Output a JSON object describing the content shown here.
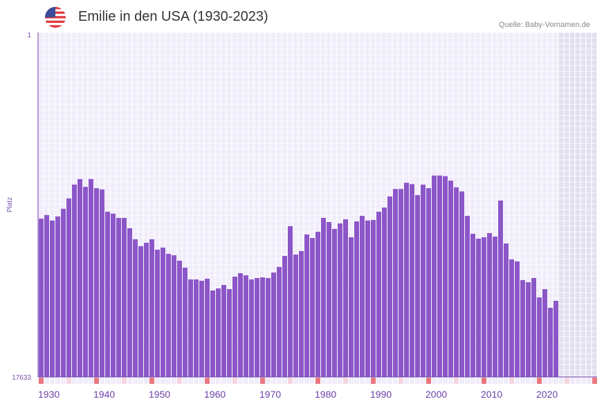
{
  "header": {
    "title": "Emilie in den USA (1930-2023)",
    "source": "Quelle: Baby-Vornamen.de",
    "flag_icon": "us-flag-icon"
  },
  "chart_data": {
    "type": "bar",
    "title": "Emilie in den USA (1930-2023)",
    "xlabel": "",
    "ylabel": "Platz",
    "y_scale": "log-reversed",
    "ylim": [
      1,
      17633
    ],
    "y_ticks": [
      "1",
      "17633"
    ],
    "x_range": [
      1930,
      2030
    ],
    "x_ticks": [
      "1930",
      "1940",
      "1950",
      "1960",
      "1970",
      "1980",
      "1990",
      "2000",
      "2010",
      "2020"
    ],
    "future_shaded_from": 2024,
    "grid": true,
    "colors": {
      "bar": "#8c56c8",
      "plot_bg": "#f0ecfa",
      "future_bg": "#e2dff0",
      "decade_marker": "#e87880",
      "half_decade_marker": "#f5d6de"
    },
    "years": [
      1930,
      1931,
      1932,
      1933,
      1934,
      1935,
      1936,
      1937,
      1938,
      1939,
      1940,
      1941,
      1942,
      1943,
      1944,
      1945,
      1946,
      1947,
      1948,
      1949,
      1950,
      1951,
      1952,
      1953,
      1954,
      1955,
      1956,
      1957,
      1958,
      1959,
      1960,
      1961,
      1962,
      1963,
      1964,
      1965,
      1966,
      1967,
      1968,
      1969,
      1970,
      1971,
      1972,
      1973,
      1974,
      1975,
      1976,
      1977,
      1978,
      1979,
      1980,
      1981,
      1982,
      1983,
      1984,
      1985,
      1986,
      1987,
      1988,
      1989,
      1990,
      1991,
      1992,
      1993,
      1994,
      1995,
      1996,
      1997,
      1998,
      1999,
      2000,
      2001,
      2002,
      2003,
      2004,
      2005,
      2006,
      2007,
      2008,
      2009,
      2010,
      2011,
      2012,
      2013,
      2014,
      2015,
      2016,
      2017,
      2018,
      2019,
      2020,
      2021,
      2022,
      2023
    ],
    "values": [
      197,
      178,
      208,
      185,
      149,
      111,
      75,
      64,
      80,
      64,
      83,
      86,
      162,
      171,
      193,
      193,
      259,
      354,
      431,
      391,
      354,
      476,
      449,
      535,
      557,
      651,
      793,
      1107,
      1107,
      1151,
      1085,
      1515,
      1429,
      1295,
      1457,
      1023,
      927,
      984,
      1107,
      1064,
      1043,
      1064,
      910,
      777,
      568,
      244,
      546,
      495,
      309,
      341,
      286,
      193,
      217,
      264,
      226,
      201,
      334,
      213,
      182,
      208,
      205,
      162,
      144,
      105,
      85,
      85,
      71,
      74,
      101,
      75,
      83,
      58,
      58,
      59,
      67,
      81,
      91,
      182,
      303,
      348,
      334,
      297,
      328,
      118,
      399,
      626,
      664,
      1128,
      1197,
      1064,
      1845,
      1457,
      2476,
      2033
    ]
  }
}
